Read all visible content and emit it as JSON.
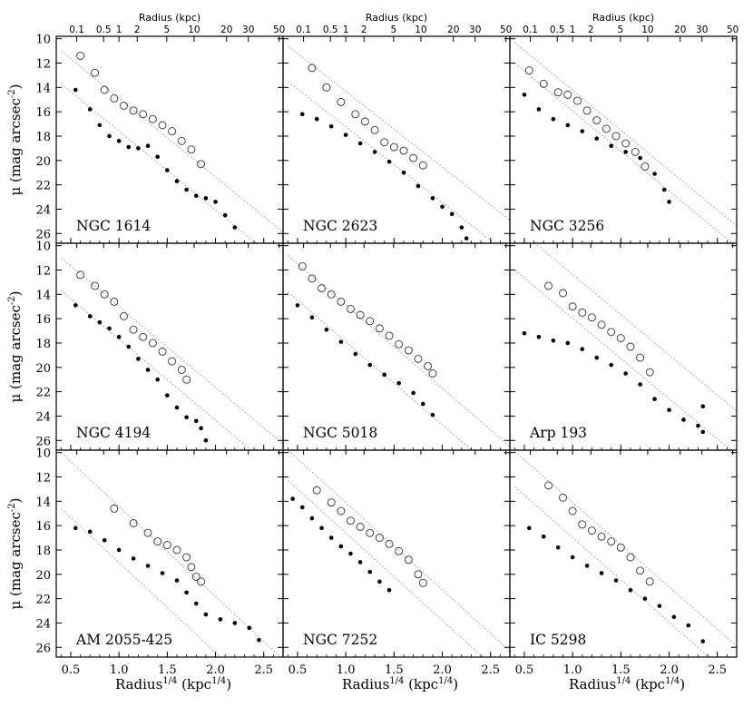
{
  "chart_data": {
    "type": "scatter",
    "layout": "3x3 grid of panels with shared axes",
    "top_axis_label": "Radius (kpc)",
    "top_tick_labels": [
      "0.1",
      "0.5",
      "1",
      "2",
      "5",
      "10",
      "20",
      "30",
      "50"
    ],
    "top_tick_values_kpc": [
      0.1,
      0.5,
      1,
      2,
      5,
      10,
      20,
      30,
      50
    ],
    "xlabel": "Radius",
    "xlabel_sup": "1/4",
    "xlabel_unit": " (kpc",
    "xlabel_unit_sup": "1/4",
    "xlabel_close": ")",
    "ylabel": "μ (mag arcsec",
    "ylabel_sup": "-2",
    "ylabel_close": ")",
    "xlim": [
      0.35,
      2.7
    ],
    "ylim": [
      26.8,
      9.8
    ],
    "x_ticks": [
      0.5,
      1.0,
      1.5,
      2.0,
      2.5
    ],
    "x_tick_labels": [
      "0.5",
      "1.0",
      "1.5",
      "2.0",
      "2.5"
    ],
    "y_ticks": [
      10,
      12,
      14,
      16,
      18,
      20,
      22,
      24,
      26
    ],
    "y_tick_labels": [
      "10",
      "12",
      "14",
      "16",
      "18",
      "20",
      "22",
      "24",
      "26"
    ],
    "series_legend": [
      "open circles",
      "filled points"
    ],
    "panels": [
      {
        "name": "NGC 1614",
        "open": [
          [
            0.6,
            11.4
          ],
          [
            0.75,
            12.8
          ],
          [
            0.85,
            14.2
          ],
          [
            0.95,
            14.9
          ],
          [
            1.05,
            15.5
          ],
          [
            1.15,
            15.9
          ],
          [
            1.25,
            16.2
          ],
          [
            1.35,
            16.6
          ],
          [
            1.45,
            17.1
          ],
          [
            1.55,
            17.6
          ],
          [
            1.65,
            18.4
          ],
          [
            1.75,
            19.1
          ],
          [
            1.85,
            20.3
          ]
        ],
        "filled": [
          [
            0.55,
            14.2
          ],
          [
            0.7,
            15.8
          ],
          [
            0.8,
            17.1
          ],
          [
            0.9,
            18.0
          ],
          [
            1.0,
            18.4
          ],
          [
            1.1,
            18.9
          ],
          [
            1.2,
            19.0
          ],
          [
            1.3,
            18.8
          ],
          [
            1.4,
            19.7
          ],
          [
            1.5,
            20.8
          ],
          [
            1.6,
            21.7
          ],
          [
            1.7,
            22.4
          ],
          [
            1.8,
            22.9
          ],
          [
            1.9,
            23.1
          ],
          [
            2.0,
            23.4
          ],
          [
            2.1,
            24.5
          ],
          [
            2.2,
            25.5
          ]
        ],
        "lines": [
          [
            [
              0.4,
              11.0
            ],
            [
              2.7,
              25.9
            ]
          ],
          [
            [
              0.4,
              13.7
            ],
            [
              2.7,
              28.6
            ]
          ]
        ]
      },
      {
        "name": "NGC 2623",
        "open": [
          [
            0.65,
            12.4
          ],
          [
            0.8,
            14.0
          ],
          [
            0.95,
            15.2
          ],
          [
            1.1,
            16.2
          ],
          [
            1.2,
            16.8
          ],
          [
            1.3,
            17.5
          ],
          [
            1.4,
            18.5
          ],
          [
            1.5,
            18.9
          ],
          [
            1.6,
            19.2
          ],
          [
            1.7,
            19.8
          ],
          [
            1.8,
            20.4
          ]
        ],
        "filled": [
          [
            0.55,
            16.2
          ],
          [
            0.7,
            16.6
          ],
          [
            0.85,
            17.2
          ],
          [
            1.0,
            17.9
          ],
          [
            1.15,
            18.6
          ],
          [
            1.3,
            19.3
          ],
          [
            1.45,
            20.1
          ],
          [
            1.6,
            21.0
          ],
          [
            1.75,
            22.1
          ],
          [
            1.9,
            23.1
          ],
          [
            2.0,
            23.8
          ],
          [
            2.1,
            24.4
          ],
          [
            2.2,
            25.5
          ],
          [
            2.25,
            26.4
          ]
        ],
        "lines": [
          [
            [
              0.4,
              10.6
            ],
            [
              2.7,
              24.9
            ]
          ],
          [
            [
              0.4,
              13.5
            ],
            [
              2.7,
              27.8
            ]
          ]
        ]
      },
      {
        "name": "NGC 3256",
        "open": [
          [
            0.55,
            12.6
          ],
          [
            0.7,
            13.7
          ],
          [
            0.85,
            14.4
          ],
          [
            0.95,
            14.6
          ],
          [
            1.05,
            15.1
          ],
          [
            1.15,
            15.9
          ],
          [
            1.25,
            16.7
          ],
          [
            1.35,
            17.4
          ],
          [
            1.45,
            18.0
          ],
          [
            1.55,
            18.6
          ],
          [
            1.65,
            19.3
          ],
          [
            1.75,
            20.5
          ]
        ],
        "filled": [
          [
            0.5,
            14.6
          ],
          [
            0.65,
            15.8
          ],
          [
            0.8,
            16.6
          ],
          [
            0.95,
            17.1
          ],
          [
            1.1,
            17.6
          ],
          [
            1.25,
            18.2
          ],
          [
            1.4,
            18.8
          ],
          [
            1.55,
            19.3
          ],
          [
            1.7,
            19.8
          ],
          [
            1.85,
            21.1
          ],
          [
            1.95,
            22.4
          ],
          [
            2.0,
            23.4
          ]
        ],
        "lines": [
          [
            [
              0.4,
              10.3
            ],
            [
              2.7,
              25.4
            ]
          ],
          [
            [
              0.4,
              12.0
            ],
            [
              2.7,
              27.1
            ]
          ]
        ]
      },
      {
        "name": "NGC 4194",
        "open": [
          [
            0.6,
            12.4
          ],
          [
            0.75,
            13.3
          ],
          [
            0.85,
            14.0
          ],
          [
            0.95,
            14.6
          ],
          [
            1.05,
            15.8
          ],
          [
            1.15,
            16.9
          ],
          [
            1.25,
            17.5
          ],
          [
            1.35,
            18.0
          ],
          [
            1.45,
            18.7
          ],
          [
            1.55,
            19.5
          ],
          [
            1.65,
            20.2
          ],
          [
            1.7,
            21.0
          ]
        ],
        "filled": [
          [
            0.55,
            14.9
          ],
          [
            0.7,
            15.8
          ],
          [
            0.8,
            16.3
          ],
          [
            0.9,
            16.8
          ],
          [
            1.0,
            17.5
          ],
          [
            1.1,
            18.3
          ],
          [
            1.2,
            19.3
          ],
          [
            1.3,
            20.2
          ],
          [
            1.4,
            21.0
          ],
          [
            1.5,
            22.3
          ],
          [
            1.6,
            23.3
          ],
          [
            1.7,
            24.1
          ],
          [
            1.8,
            24.4
          ],
          [
            1.85,
            25.0
          ],
          [
            1.9,
            26.0
          ]
        ],
        "lines": [
          [
            [
              0.4,
              11.0
            ],
            [
              2.7,
              26.3
            ]
          ],
          [
            [
              0.4,
              13.7
            ],
            [
              2.7,
              29.0
            ]
          ]
        ]
      },
      {
        "name": "NGC 5018",
        "open": [
          [
            0.55,
            11.7
          ],
          [
            0.65,
            12.7
          ],
          [
            0.75,
            13.5
          ],
          [
            0.85,
            14.0
          ],
          [
            0.95,
            14.6
          ],
          [
            1.05,
            15.2
          ],
          [
            1.15,
            15.7
          ],
          [
            1.25,
            16.2
          ],
          [
            1.35,
            16.8
          ],
          [
            1.45,
            17.4
          ],
          [
            1.55,
            18.1
          ],
          [
            1.65,
            18.6
          ],
          [
            1.75,
            19.3
          ],
          [
            1.85,
            19.9
          ],
          [
            1.9,
            20.5
          ]
        ],
        "filled": [
          [
            0.5,
            14.9
          ],
          [
            0.65,
            15.9
          ],
          [
            0.8,
            16.9
          ],
          [
            0.95,
            17.9
          ],
          [
            1.1,
            18.9
          ],
          [
            1.25,
            19.8
          ],
          [
            1.4,
            20.6
          ],
          [
            1.55,
            21.3
          ],
          [
            1.7,
            22.1
          ],
          [
            1.8,
            23.0
          ],
          [
            1.9,
            23.9
          ]
        ],
        "lines": [
          [
            [
              0.4,
              10.8
            ],
            [
              2.7,
              26.5
            ]
          ],
          [
            [
              0.4,
              13.8
            ],
            [
              2.7,
              29.5
            ]
          ]
        ]
      },
      {
        "name": "Arp 193",
        "open": [
          [
            0.75,
            13.3
          ],
          [
            0.9,
            13.9
          ],
          [
            1.0,
            15.0
          ],
          [
            1.1,
            15.5
          ],
          [
            1.2,
            15.9
          ],
          [
            1.3,
            16.5
          ],
          [
            1.4,
            17.1
          ],
          [
            1.5,
            17.6
          ],
          [
            1.6,
            18.3
          ],
          [
            1.7,
            19.2
          ],
          [
            1.8,
            20.4
          ]
        ],
        "filled": [
          [
            0.5,
            17.2
          ],
          [
            0.65,
            17.5
          ],
          [
            0.8,
            17.8
          ],
          [
            0.95,
            18.0
          ],
          [
            1.1,
            18.5
          ],
          [
            1.25,
            19.2
          ],
          [
            1.4,
            19.8
          ],
          [
            1.55,
            20.5
          ],
          [
            1.7,
            21.4
          ],
          [
            1.85,
            22.6
          ],
          [
            2.0,
            23.5
          ],
          [
            2.15,
            24.3
          ],
          [
            2.3,
            24.8
          ],
          [
            2.35,
            25.3
          ],
          [
            2.35,
            23.2
          ]
        ],
        "lines": [
          [
            [
              0.4,
              8.4
            ],
            [
              2.7,
              23.6
            ]
          ],
          [
            [
              0.4,
              12.0
            ],
            [
              2.7,
              27.2
            ]
          ]
        ]
      },
      {
        "name": "AM 2055-425",
        "open": [
          [
            0.95,
            14.6
          ],
          [
            1.15,
            15.8
          ],
          [
            1.3,
            16.6
          ],
          [
            1.4,
            17.3
          ],
          [
            1.5,
            17.6
          ],
          [
            1.6,
            18.0
          ],
          [
            1.7,
            18.6
          ],
          [
            1.75,
            19.4
          ],
          [
            1.8,
            20.2
          ],
          [
            1.85,
            20.6
          ]
        ],
        "filled": [
          [
            0.55,
            16.2
          ],
          [
            0.7,
            16.5
          ],
          [
            0.85,
            17.2
          ],
          [
            1.0,
            18.0
          ],
          [
            1.15,
            18.7
          ],
          [
            1.3,
            19.3
          ],
          [
            1.45,
            19.9
          ],
          [
            1.6,
            20.5
          ],
          [
            1.7,
            21.5
          ],
          [
            1.8,
            22.4
          ],
          [
            1.9,
            23.3
          ],
          [
            2.05,
            23.7
          ],
          [
            2.2,
            24.0
          ],
          [
            2.35,
            24.4
          ],
          [
            2.45,
            25.4
          ]
        ],
        "lines": [
          [
            [
              0.4,
              10.0
            ],
            [
              2.7,
              27.0
            ]
          ],
          [
            [
              0.4,
              14.6
            ],
            [
              2.7,
              31.6
            ]
          ]
        ]
      },
      {
        "name": "NGC 7252",
        "open": [
          [
            0.7,
            13.1
          ],
          [
            0.85,
            14.1
          ],
          [
            0.95,
            14.8
          ],
          [
            1.05,
            15.6
          ],
          [
            1.15,
            16.1
          ],
          [
            1.25,
            16.6
          ],
          [
            1.35,
            17.0
          ],
          [
            1.45,
            17.5
          ],
          [
            1.55,
            18.1
          ],
          [
            1.65,
            18.8
          ],
          [
            1.75,
            20.0
          ],
          [
            1.8,
            20.7
          ]
        ],
        "filled": [
          [
            0.45,
            13.8
          ],
          [
            0.55,
            14.5
          ],
          [
            0.65,
            15.4
          ],
          [
            0.75,
            16.2
          ],
          [
            0.85,
            17.0
          ],
          [
            0.95,
            17.7
          ],
          [
            1.05,
            18.3
          ],
          [
            1.15,
            19.0
          ],
          [
            1.25,
            19.8
          ],
          [
            1.35,
            20.6
          ],
          [
            1.45,
            21.3
          ]
        ],
        "lines": [
          [
            [
              0.4,
              9.8
            ],
            [
              2.7,
              26.3
            ]
          ],
          [
            [
              0.4,
              12.3
            ],
            [
              2.7,
              28.8
            ]
          ]
        ]
      },
      {
        "name": "IC 5298",
        "open": [
          [
            0.75,
            12.7
          ],
          [
            0.9,
            13.7
          ],
          [
            1.0,
            14.8
          ],
          [
            1.1,
            15.9
          ],
          [
            1.2,
            16.4
          ],
          [
            1.3,
            16.9
          ],
          [
            1.4,
            17.3
          ],
          [
            1.5,
            17.8
          ],
          [
            1.6,
            18.6
          ],
          [
            1.7,
            19.7
          ],
          [
            1.8,
            20.6
          ]
        ],
        "filled": [
          [
            0.55,
            16.2
          ],
          [
            0.7,
            16.9
          ],
          [
            0.85,
            17.8
          ],
          [
            1.0,
            18.6
          ],
          [
            1.15,
            19.3
          ],
          [
            1.3,
            19.9
          ],
          [
            1.45,
            20.5
          ],
          [
            1.6,
            21.3
          ],
          [
            1.75,
            22.0
          ],
          [
            1.9,
            22.6
          ],
          [
            2.05,
            23.5
          ],
          [
            2.2,
            24.2
          ],
          [
            2.35,
            25.5
          ]
        ],
        "lines": [
          [
            [
              0.4,
              9.9
            ],
            [
              2.7,
              25.9
            ]
          ],
          [
            [
              0.4,
              12.8
            ],
            [
              2.7,
              28.8
            ]
          ]
        ]
      }
    ]
  }
}
